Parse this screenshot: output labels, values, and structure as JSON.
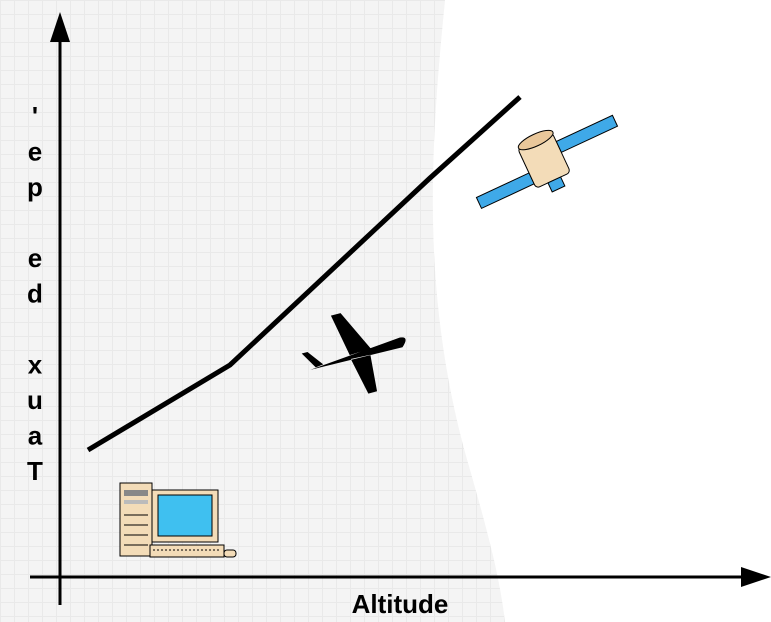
{
  "axes": {
    "y_label": "Taux de pe'",
    "x_label": "Altitude"
  }
}
